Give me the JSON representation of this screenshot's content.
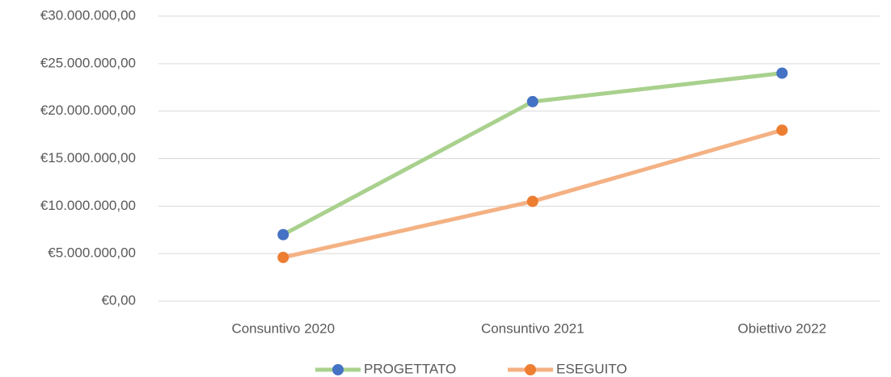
{
  "chart_data": {
    "type": "line",
    "categories": [
      "Consuntivo 2020",
      "Consuntivo 2021",
      "Obiettivo 2022"
    ],
    "series": [
      {
        "name": "PROGETTATO",
        "color": "#a9d18e",
        "marker_color": "#4472c4",
        "values": [
          7000000,
          21000000,
          24000000
        ]
      },
      {
        "name": "ESEGUITO",
        "color": "#f4b183",
        "marker_color": "#ed7d31",
        "values": [
          4600000,
          10500000,
          18000000
        ]
      }
    ],
    "ylim": [
      0,
      30000000
    ],
    "yticks": [
      {
        "value": 0,
        "label": "€0,00"
      },
      {
        "value": 5000000,
        "label": "€5.000.000,00"
      },
      {
        "value": 10000000,
        "label": "€10.000.000,00"
      },
      {
        "value": 15000000,
        "label": "€15.000.000,00"
      },
      {
        "value": 20000000,
        "label": "€20.000.000,00"
      },
      {
        "value": 25000000,
        "label": "€25.000.000,00"
      },
      {
        "value": 30000000,
        "label": "€30.000.000,00"
      }
    ],
    "grid": true,
    "legend": "bottom"
  }
}
